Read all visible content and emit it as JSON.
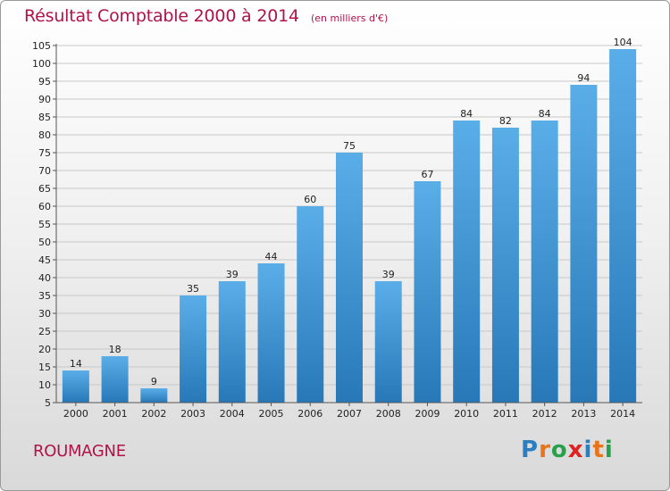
{
  "title": "Résultat Comptable 2000 à 2014",
  "subtitle": "(en milliers d'€)",
  "commune": "ROUMAGNE",
  "logo": {
    "letters": [
      "P",
      "r",
      "o",
      "x",
      "i",
      "t",
      "i"
    ],
    "colors": [
      "#2a7fc1",
      "#e8731a",
      "#2aa04a",
      "#e12020",
      "#2a7fc1",
      "#e8731a",
      "#2aa04a"
    ]
  },
  "colors": {
    "bar_top": "#5aaee8",
    "bar_bottom": "#2878b8",
    "accent": "#b0124a"
  },
  "chart_data": {
    "type": "bar",
    "categories": [
      "2000",
      "2001",
      "2002",
      "2003",
      "2004",
      "2005",
      "2006",
      "2007",
      "2008",
      "2009",
      "2010",
      "2011",
      "2012",
      "2013",
      "2014"
    ],
    "values": [
      14,
      18,
      9,
      35,
      39,
      44,
      60,
      75,
      39,
      67,
      84,
      82,
      84,
      94,
      104
    ],
    "ylim": [
      5,
      105
    ],
    "yticks": [
      5,
      10,
      15,
      20,
      25,
      30,
      35,
      40,
      45,
      50,
      55,
      60,
      65,
      70,
      75,
      80,
      85,
      90,
      95,
      100,
      105
    ],
    "grid": true
  }
}
